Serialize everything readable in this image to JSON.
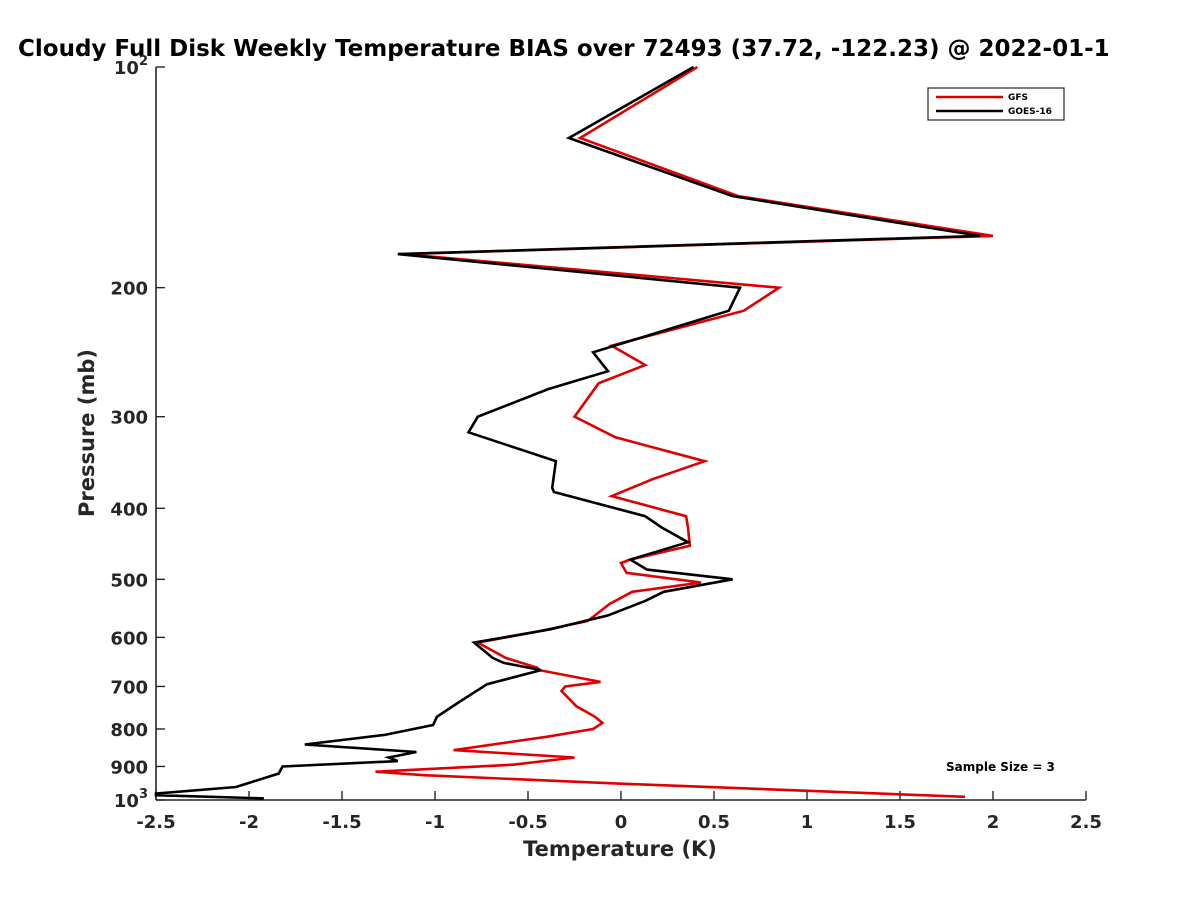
{
  "chart_data": {
    "type": "line",
    "title": "Cloudy Full Disk Weekly Temperature BIAS over 72493 (37.72, -122.23) @ 2022-01-1",
    "xlabel": "Temperature (K)",
    "ylabel": "Pressure (mb)",
    "xlim": [
      -2.5,
      2.5
    ],
    "ylim": [
      100,
      1000
    ],
    "y_scale": "log",
    "y_reversed": true,
    "grid": false,
    "x_ticks": [
      "-2.5",
      "-2",
      "-1.5",
      "-1",
      "-0.5",
      "0",
      "0.5",
      "1",
      "1.5",
      "2",
      "2.5"
    ],
    "y_ticks": [
      {
        "value": 100,
        "label": "10",
        "exp": "2"
      },
      {
        "value": 200,
        "label": "200"
      },
      {
        "value": 300,
        "label": "300"
      },
      {
        "value": 400,
        "label": "400"
      },
      {
        "value": 500,
        "label": "500"
      },
      {
        "value": 600,
        "label": "600"
      },
      {
        "value": 700,
        "label": "700"
      },
      {
        "value": 800,
        "label": "800"
      },
      {
        "value": 900,
        "label": "900"
      },
      {
        "value": 1000,
        "label": "10",
        "exp": "3"
      }
    ],
    "legend_position": "top-right",
    "series": [
      {
        "name": "GFS",
        "color": "#e00000",
        "points": [
          [
            0.41,
            100
          ],
          [
            -0.22,
            125
          ],
          [
            0.63,
            150
          ],
          [
            2.0,
            170
          ],
          [
            -1.17,
            180
          ],
          [
            0.85,
            200
          ],
          [
            0.66,
            215
          ],
          [
            -0.05,
            240
          ],
          [
            0.13,
            255
          ],
          [
            -0.12,
            270
          ],
          [
            -0.25,
            300
          ],
          [
            -0.03,
            320
          ],
          [
            0.45,
            345
          ],
          [
            0.17,
            365
          ],
          [
            -0.05,
            385
          ],
          [
            0.35,
            410
          ],
          [
            0.36,
            425
          ],
          [
            0.37,
            450
          ],
          [
            0.05,
            470
          ],
          [
            0.0,
            475
          ],
          [
            0.03,
            490
          ],
          [
            0.43,
            505
          ],
          [
            0.06,
            520
          ],
          [
            -0.06,
            540
          ],
          [
            -0.18,
            570
          ],
          [
            -0.46,
            590
          ],
          [
            -0.77,
            610
          ],
          [
            -0.62,
            640
          ],
          [
            -0.45,
            660
          ],
          [
            -0.44,
            665
          ],
          [
            -0.11,
            690
          ],
          [
            -0.3,
            700
          ],
          [
            -0.32,
            710
          ],
          [
            -0.24,
            745
          ],
          [
            -0.14,
            770
          ],
          [
            -0.1,
            785
          ],
          [
            -0.15,
            800
          ],
          [
            -0.4,
            820
          ],
          [
            -0.9,
            855
          ],
          [
            -0.25,
            875
          ],
          [
            -0.58,
            895
          ],
          [
            -1.32,
            915
          ],
          [
            -1.06,
            925
          ],
          [
            0.0,
            950
          ],
          [
            1.85,
            990
          ]
        ]
      },
      {
        "name": "GOES-16",
        "color": "#000000",
        "points": [
          [
            0.39,
            100
          ],
          [
            -0.28,
            125
          ],
          [
            0.6,
            150
          ],
          [
            1.93,
            170
          ],
          [
            -1.2,
            180
          ],
          [
            0.64,
            200
          ],
          [
            0.58,
            215
          ],
          [
            -0.15,
            245
          ],
          [
            -0.07,
            260
          ],
          [
            -0.39,
            275
          ],
          [
            -0.77,
            300
          ],
          [
            -0.82,
            315
          ],
          [
            -0.35,
            345
          ],
          [
            -0.37,
            375
          ],
          [
            -0.36,
            380
          ],
          [
            0.13,
            410
          ],
          [
            0.22,
            425
          ],
          [
            0.36,
            445
          ],
          [
            0.05,
            470
          ],
          [
            0.14,
            485
          ],
          [
            0.6,
            500
          ],
          [
            0.23,
            520
          ],
          [
            0.13,
            535
          ],
          [
            -0.07,
            560
          ],
          [
            -0.38,
            585
          ],
          [
            -0.79,
            610
          ],
          [
            -0.69,
            640
          ],
          [
            -0.63,
            650
          ],
          [
            -0.43,
            665
          ],
          [
            -0.72,
            695
          ],
          [
            -0.87,
            735
          ],
          [
            -0.99,
            770
          ],
          [
            -1.01,
            790
          ],
          [
            -1.27,
            815
          ],
          [
            -1.7,
            840
          ],
          [
            -1.1,
            860
          ],
          [
            -1.25,
            875
          ],
          [
            -1.2,
            885
          ],
          [
            -1.82,
            900
          ],
          [
            -1.84,
            920
          ],
          [
            -2.07,
            960
          ],
          [
            -2.5,
            980
          ],
          [
            -2.5,
            985
          ],
          [
            -1.92,
            995
          ]
        ]
      }
    ],
    "annotations": [
      "Sample Size = 3"
    ]
  }
}
